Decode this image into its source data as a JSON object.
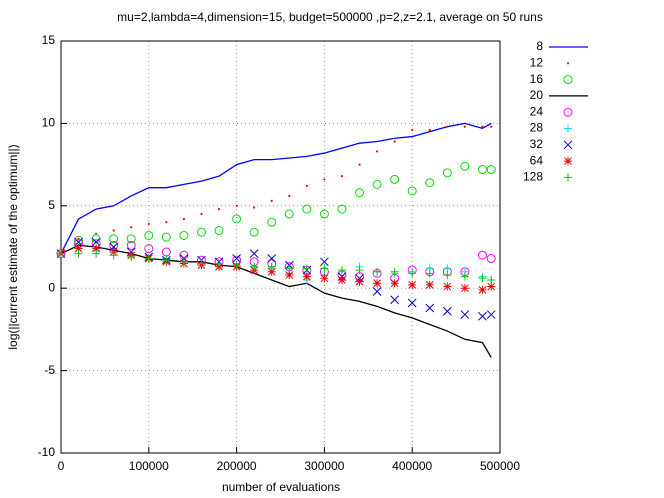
{
  "chart_data": {
    "type": "line",
    "title": "mu=2,lambda=4,dimension=15, budget=500000 ,p=2,z=2.1, average on 50 runs",
    "x_label": "number of evaluations",
    "y_label": "log(||current estimate of the optimum||)",
    "x": [
      0,
      20000,
      40000,
      60000,
      80000,
      100000,
      120000,
      140000,
      160000,
      180000,
      200000,
      220000,
      240000,
      260000,
      280000,
      300000,
      320000,
      340000,
      360000,
      380000,
      400000,
      420000,
      440000,
      460000,
      480000,
      490000
    ],
    "xlim": [
      0,
      500000
    ],
    "xticks": [
      0,
      100000,
      200000,
      300000,
      400000,
      500000
    ],
    "ylim": [
      -10,
      15
    ],
    "yticks": [
      -10,
      -5,
      0,
      5,
      10,
      15
    ],
    "grid": true,
    "legend": "right",
    "series": [
      {
        "name": "8",
        "color": "#0000ff",
        "marker": "line",
        "values": [
          2.1,
          4.2,
          4.8,
          5.0,
          5.6,
          6.1,
          6.1,
          6.3,
          6.5,
          6.8,
          7.5,
          7.8,
          7.8,
          7.9,
          8.0,
          8.2,
          8.5,
          8.8,
          8.9,
          9.1,
          9.2,
          9.5,
          9.8,
          10.0,
          9.7,
          10.0
        ]
      },
      {
        "name": "12",
        "color": "#ff0000",
        "marker": "dot",
        "values": [
          2.1,
          3.0,
          3.3,
          3.5,
          3.7,
          3.9,
          4.0,
          4.2,
          4.5,
          4.8,
          5.0,
          4.9,
          5.3,
          5.6,
          6.2,
          6.6,
          6.8,
          7.5,
          8.3,
          8.9,
          9.6,
          9.6,
          9.8,
          9.8,
          9.8,
          9.8
        ]
      },
      {
        "name": "16",
        "color": "#00dd00",
        "marker": "circle",
        "values": [
          2.1,
          2.9,
          3.0,
          3.0,
          3.0,
          3.2,
          3.1,
          3.2,
          3.4,
          3.5,
          4.2,
          3.4,
          4.0,
          4.5,
          4.8,
          4.5,
          4.8,
          5.8,
          6.3,
          6.6,
          5.9,
          6.4,
          7.0,
          7.4,
          7.2,
          7.2
        ]
      },
      {
        "name": "20",
        "color": "#000000",
        "marker": "line",
        "values": [
          2.1,
          2.6,
          2.5,
          2.3,
          2.1,
          1.8,
          1.7,
          1.6,
          1.6,
          1.4,
          1.3,
          0.9,
          0.5,
          0.1,
          0.3,
          -0.3,
          -0.6,
          -0.8,
          -1.1,
          -1.5,
          -1.8,
          -2.2,
          -2.6,
          -3.1,
          -3.3,
          -4.2
        ]
      },
      {
        "name": "24",
        "color": "#ff00ff",
        "marker": "circle",
        "values": [
          2.1,
          2.7,
          2.7,
          2.6,
          2.6,
          2.4,
          2.2,
          2.0,
          1.7,
          1.6,
          1.7,
          1.6,
          1.5,
          1.3,
          1.1,
          1.0,
          0.8,
          0.7,
          0.9,
          0.6,
          1.1,
          1.0,
          1.0,
          1.0,
          2.0,
          1.8
        ]
      },
      {
        "name": "28",
        "color": "#00e0e0",
        "marker": "plus",
        "values": [
          2.1,
          2.4,
          2.3,
          2.2,
          2.0,
          1.8,
          1.8,
          1.6,
          1.5,
          1.4,
          1.4,
          1.3,
          1.2,
          0.9,
          0.5,
          0.8,
          1.0,
          1.3,
          1.0,
          0.9,
          1.0,
          1.2,
          1.2,
          1.0,
          0.7,
          0.5
        ]
      },
      {
        "name": "32",
        "color": "#0000cc",
        "marker": "cross",
        "values": [
          2.1,
          2.8,
          2.8,
          2.5,
          2.2,
          1.9,
          1.7,
          1.8,
          1.7,
          1.6,
          1.8,
          2.1,
          1.8,
          1.4,
          1.1,
          1.6,
          0.7,
          0.6,
          -0.2,
          -0.7,
          -0.9,
          -1.2,
          -1.4,
          -1.6,
          -1.7,
          -1.6
        ]
      },
      {
        "name": "64",
        "color": "#ee0000",
        "marker": "star",
        "values": [
          2.1,
          2.4,
          2.4,
          2.2,
          2.0,
          1.8,
          1.6,
          1.5,
          1.4,
          1.3,
          1.3,
          1.1,
          1.0,
          0.8,
          0.7,
          0.6,
          0.5,
          0.4,
          0.3,
          0.3,
          0.2,
          0.2,
          0.1,
          0.0,
          -0.1,
          0.1
        ]
      },
      {
        "name": "128",
        "color": "#00cc00",
        "marker": "plus",
        "values": [
          2.1,
          2.1,
          2.1,
          2.0,
          1.9,
          1.8,
          1.7,
          1.6,
          1.5,
          1.5,
          1.4,
          1.3,
          1.3,
          1.2,
          1.2,
          1.2,
          1.1,
          1.1,
          1.0,
          1.0,
          0.9,
          0.9,
          0.8,
          0.7,
          0.6,
          0.5
        ]
      }
    ]
  }
}
